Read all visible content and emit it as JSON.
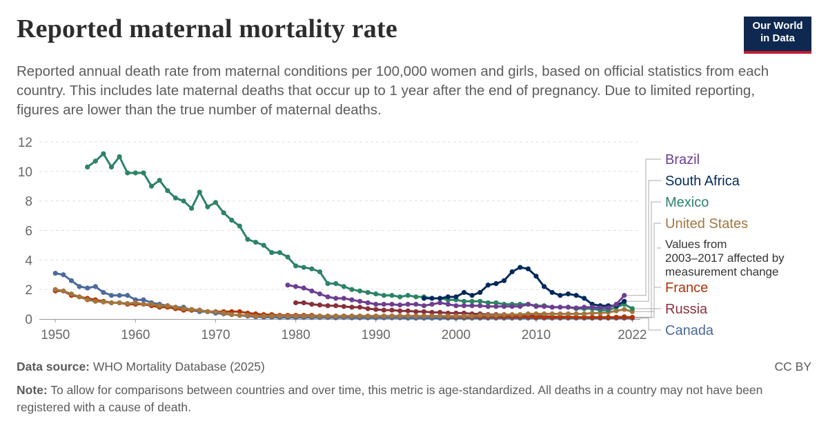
{
  "header": {
    "title": "Reported maternal mortality rate",
    "subtitle": "Reported annual death rate from maternal conditions per 100,000 women and girls, based on official statistics from each country. This includes late maternal deaths that occur up to 1 year after the end of pregnancy. Due to limited reporting, figures are lower than the true number of maternal deaths.",
    "logo_line1": "Our World",
    "logo_line2": "in Data"
  },
  "footer": {
    "source_label": "Data source:",
    "source_text": "WHO Mortality Database (2025)",
    "license": "CC BY",
    "note_label": "Note:",
    "note_text": "To allow for comparisons between countries and over time, this metric is age-standardized. All deaths in a country may not have been registered with a cause of death."
  },
  "chart_data": {
    "type": "line",
    "xlim": [
      1948,
      2023
    ],
    "ylim": [
      0,
      12
    ],
    "x_ticks": [
      1950,
      1960,
      1970,
      1980,
      1990,
      2000,
      2010,
      2022
    ],
    "y_ticks": [
      0,
      2,
      4,
      6,
      8,
      10,
      12
    ],
    "grid": "horizontal dashed",
    "legend": "right, line-end labels",
    "annotation": "Values from 2003–2017 affected by measurement change",
    "series": [
      {
        "name": "Canada",
        "color": "#4c6a9c",
        "x": [
          1950,
          1951,
          1952,
          1953,
          1954,
          1955,
          1956,
          1957,
          1958,
          1959,
          1960,
          1961,
          1962,
          1963,
          1964,
          1965,
          1966,
          1967,
          1968,
          1969,
          1970,
          1971,
          1972,
          1973,
          1974,
          1975,
          1976,
          1977,
          1978,
          1979,
          1980,
          1981,
          1982,
          1983,
          1984,
          1985,
          1986,
          1987,
          1988,
          1989,
          1990,
          1991,
          1992,
          1993,
          1994,
          1995,
          1996,
          1997,
          1998,
          1999,
          2000,
          2001,
          2002,
          2003,
          2004,
          2005,
          2006,
          2007,
          2008,
          2009,
          2010,
          2011,
          2012,
          2013,
          2014,
          2015,
          2016,
          2017,
          2018,
          2019,
          2020,
          2021,
          2022
        ],
        "y": [
          3.1,
          3.0,
          2.6,
          2.2,
          2.1,
          2.2,
          1.8,
          1.6,
          1.6,
          1.6,
          1.3,
          1.3,
          1.1,
          1.0,
          0.9,
          0.8,
          0.8,
          0.6,
          0.5,
          0.5,
          0.4,
          0.35,
          0.3,
          0.25,
          0.2,
          0.15,
          0.12,
          0.12,
          0.1,
          0.1,
          0.1,
          0.1,
          0.1,
          0.1,
          0.1,
          0.08,
          0.1,
          0.08,
          0.08,
          0.08,
          0.08,
          0.08,
          0.08,
          0.08,
          0.06,
          0.06,
          0.06,
          0.06,
          0.06,
          0.06,
          0.06,
          0.06,
          0.06,
          0.06,
          0.06,
          0.06,
          0.06,
          0.06,
          0.06,
          0.06,
          0.06,
          0.06,
          0.06,
          0.06,
          0.06,
          0.06,
          0.06,
          0.06,
          0.06,
          0.06,
          0.06,
          0.06,
          0.06
        ]
      },
      {
        "name": "Russia",
        "color": "#883039",
        "x": [
          1980,
          1981,
          1982,
          1983,
          1984,
          1985,
          1986,
          1987,
          1988,
          1989,
          1990,
          1991,
          1992,
          1993,
          1994,
          1995,
          1996,
          1997,
          1998,
          1999,
          2000,
          2001,
          2002,
          2003,
          2004,
          2005,
          2006,
          2007,
          2008,
          2009,
          2010,
          2011,
          2012,
          2013,
          2014,
          2015,
          2016,
          2017,
          2018,
          2019,
          2020,
          2021,
          2022
        ],
        "y": [
          1.1,
          1.1,
          1.0,
          0.95,
          0.9,
          0.9,
          0.85,
          0.8,
          0.8,
          0.7,
          0.65,
          0.6,
          0.6,
          0.55,
          0.55,
          0.5,
          0.5,
          0.45,
          0.45,
          0.4,
          0.4,
          0.4,
          0.35,
          0.35,
          0.3,
          0.3,
          0.3,
          0.25,
          0.25,
          0.25,
          0.2,
          0.2,
          0.15,
          0.15,
          0.15,
          0.12,
          0.12,
          0.1,
          0.1,
          0.1,
          0.12,
          0.15,
          0.1
        ]
      },
      {
        "name": "France",
        "color": "#b13507",
        "x": [
          1950,
          1951,
          1952,
          1953,
          1954,
          1955,
          1956,
          1957,
          1958,
          1959,
          1960,
          1961,
          1962,
          1963,
          1964,
          1965,
          1966,
          1967,
          1968,
          1969,
          1970,
          1971,
          1972,
          1973,
          1974,
          1975,
          1976,
          1977,
          1978,
          1979,
          1980,
          1981,
          1982,
          1983,
          1984,
          1985,
          1986,
          1987,
          1988,
          1989,
          1990,
          1991,
          1992,
          1993,
          1994,
          1995,
          1996,
          1997,
          1998,
          1999,
          2000,
          2001,
          2002,
          2003,
          2004,
          2005,
          2006,
          2007,
          2008,
          2009,
          2010,
          2011,
          2012,
          2013,
          2014,
          2015,
          2016,
          2017,
          2018,
          2019,
          2020,
          2021,
          2022
        ],
        "y": [
          1.9,
          1.9,
          1.6,
          1.5,
          1.4,
          1.3,
          1.2,
          1.1,
          1.1,
          1.0,
          1.0,
          1.0,
          0.9,
          0.8,
          0.8,
          0.7,
          0.6,
          0.6,
          0.6,
          0.5,
          0.5,
          0.5,
          0.5,
          0.5,
          0.4,
          0.35,
          0.3,
          0.3,
          0.25,
          0.25,
          0.25,
          0.25,
          0.25,
          0.2,
          0.2,
          0.2,
          0.2,
          0.2,
          0.2,
          0.2,
          0.2,
          0.2,
          0.2,
          0.2,
          0.2,
          0.2,
          0.2,
          0.2,
          0.2,
          0.15,
          0.15,
          0.15,
          0.15,
          0.15,
          0.15,
          0.15,
          0.15,
          0.15,
          0.15,
          0.15,
          0.12,
          0.12,
          0.12,
          0.12,
          0.12,
          0.12,
          0.12,
          0.12,
          0.12,
          0.12,
          0.12,
          0.12,
          0.12
        ]
      },
      {
        "name": "United States",
        "color": "#a2763f",
        "x": [
          1950,
          1951,
          1952,
          1953,
          1954,
          1955,
          1956,
          1957,
          1958,
          1959,
          1960,
          1961,
          1962,
          1963,
          1964,
          1965,
          1966,
          1967,
          1968,
          1969,
          1970,
          1971,
          1972,
          1973,
          1974,
          1975,
          1976,
          1977,
          1978,
          1979,
          1980,
          1981,
          1982,
          1983,
          1984,
          1985,
          1986,
          1987,
          1988,
          1989,
          1990,
          1991,
          1992,
          1993,
          1994,
          1995,
          1996,
          1997,
          1998,
          1999,
          2000,
          2001,
          2002,
          2003,
          2004,
          2005,
          2006,
          2007,
          2008,
          2009,
          2010,
          2011,
          2012,
          2013,
          2014,
          2015,
          2016,
          2017,
          2018,
          2019,
          2020,
          2021,
          2022
        ],
        "y": [
          2.0,
          1.9,
          1.7,
          1.5,
          1.3,
          1.2,
          1.15,
          1.1,
          1.1,
          1.05,
          1.1,
          1.0,
          1.0,
          0.9,
          0.9,
          0.8,
          0.7,
          0.65,
          0.6,
          0.5,
          0.5,
          0.4,
          0.3,
          0.25,
          0.25,
          0.2,
          0.2,
          0.2,
          0.2,
          0.2,
          0.2,
          0.2,
          0.2,
          0.2,
          0.2,
          0.2,
          0.2,
          0.2,
          0.2,
          0.2,
          0.2,
          0.2,
          0.2,
          0.2,
          0.2,
          0.2,
          0.2,
          0.2,
          0.2,
          0.2,
          0.2,
          0.2,
          0.2,
          0.25,
          0.25,
          0.25,
          0.3,
          0.3,
          0.3,
          0.35,
          0.35,
          0.35,
          0.35,
          0.35,
          0.35,
          0.35,
          0.35,
          0.4,
          0.4,
          0.45,
          0.55,
          0.65,
          0.5
        ]
      },
      {
        "name": "Mexico",
        "color": "#2c8465",
        "x": [
          1954,
          1955,
          1956,
          1957,
          1958,
          1959,
          1960,
          1961,
          1962,
          1963,
          1964,
          1965,
          1966,
          1967,
          1968,
          1969,
          1970,
          1971,
          1972,
          1973,
          1974,
          1975,
          1976,
          1977,
          1978,
          1979,
          1980,
          1981,
          1982,
          1983,
          1984,
          1985,
          1986,
          1987,
          1988,
          1989,
          1990,
          1991,
          1992,
          1993,
          1994,
          1995,
          1996,
          1997,
          1998,
          1999,
          2000,
          2001,
          2002,
          2003,
          2004,
          2005,
          2006,
          2007,
          2008,
          2009,
          2010,
          2011,
          2012,
          2013,
          2014,
          2015,
          2016,
          2017,
          2018,
          2019,
          2020,
          2021,
          2022
        ],
        "y": [
          10.3,
          10.7,
          11.2,
          10.3,
          11.0,
          9.9,
          9.9,
          9.9,
          9.0,
          9.4,
          8.7,
          8.2,
          8.0,
          7.5,
          8.6,
          7.6,
          7.9,
          7.2,
          6.7,
          6.3,
          5.4,
          5.2,
          5.0,
          4.5,
          4.5,
          4.2,
          3.6,
          3.5,
          3.4,
          3.2,
          2.4,
          2.4,
          2.2,
          2.0,
          1.9,
          1.8,
          1.7,
          1.6,
          1.6,
          1.5,
          1.6,
          1.5,
          1.5,
          1.4,
          1.4,
          1.3,
          1.3,
          1.2,
          1.2,
          1.2,
          1.1,
          1.1,
          1.0,
          1.0,
          1.0,
          1.0,
          0.9,
          0.9,
          0.8,
          0.8,
          0.8,
          0.7,
          0.7,
          0.7,
          0.6,
          0.6,
          0.8,
          1.0,
          0.7
        ]
      },
      {
        "name": "South Africa",
        "color": "#00295b",
        "x": [
          1996,
          1997,
          1998,
          1999,
          2000,
          2001,
          2002,
          2003,
          2004,
          2005,
          2006,
          2007,
          2008,
          2009,
          2010,
          2011,
          2012,
          2013,
          2014,
          2015,
          2016,
          2017,
          2018,
          2019,
          2020,
          2021
        ],
        "y": [
          1.4,
          1.4,
          1.4,
          1.5,
          1.5,
          1.8,
          1.6,
          1.8,
          2.3,
          2.4,
          2.6,
          3.2,
          3.5,
          3.4,
          2.9,
          2.2,
          1.8,
          1.6,
          1.7,
          1.6,
          1.4,
          1.0,
          0.9,
          0.9,
          0.9,
          1.2
        ]
      },
      {
        "name": "Brazil",
        "color": "#6d3e91",
        "x": [
          1979,
          1980,
          1981,
          1982,
          1983,
          1984,
          1985,
          1986,
          1987,
          1988,
          1989,
          1990,
          1991,
          1992,
          1993,
          1994,
          1995,
          1996,
          1997,
          1998,
          1999,
          2000,
          2001,
          2002,
          2003,
          2004,
          2005,
          2006,
          2007,
          2008,
          2009,
          2010,
          2011,
          2012,
          2013,
          2014,
          2015,
          2016,
          2017,
          2018,
          2019,
          2020,
          2021
        ],
        "y": [
          2.3,
          2.2,
          2.1,
          1.9,
          1.7,
          1.5,
          1.4,
          1.4,
          1.3,
          1.2,
          1.1,
          1.0,
          1.0,
          1.0,
          0.95,
          1.0,
          1.0,
          0.9,
          1.0,
          1.1,
          1.0,
          0.9,
          0.9,
          0.9,
          0.9,
          0.85,
          0.85,
          0.85,
          0.85,
          0.85,
          1.0,
          0.85,
          0.85,
          0.8,
          0.8,
          0.8,
          0.75,
          0.8,
          0.8,
          0.75,
          0.75,
          1.0,
          1.6
        ]
      }
    ]
  }
}
